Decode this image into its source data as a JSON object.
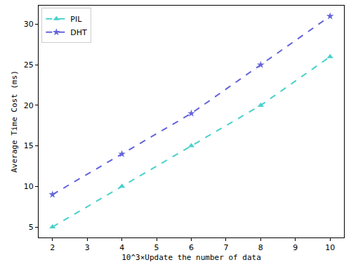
{
  "chart_data": {
    "type": "line",
    "x_label": "10^3×Update the number of data",
    "y_label": "Average Time Cost (ms)",
    "x": [
      2,
      4,
      6,
      8,
      10
    ],
    "series": [
      {
        "name": "PIL",
        "color": "#48d1cc",
        "marker": "triangle-up",
        "line_style": "dashed",
        "values": [
          5,
          10,
          15,
          20,
          26
        ]
      },
      {
        "name": "DHT",
        "color": "#6464dc",
        "marker": "star",
        "line_style": "dashed",
        "values": [
          9,
          14,
          19,
          25,
          31
        ]
      }
    ],
    "xlim": [
      1.6,
      10.4
    ],
    "ylim": [
      3.7,
      32.3
    ],
    "xticks": [
      2,
      3,
      4,
      5,
      6,
      7,
      8,
      9,
      10
    ],
    "yticks": [
      5,
      10,
      15,
      20,
      25,
      30
    ],
    "grid": false,
    "legend": "upper left"
  }
}
